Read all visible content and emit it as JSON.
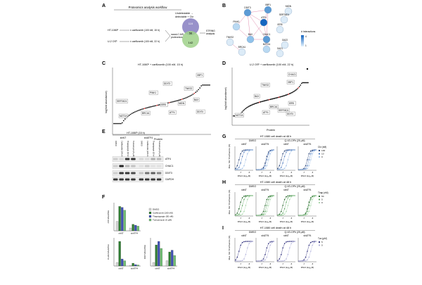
{
  "panels": {
    "A": {
      "letter": "A",
      "title": "Proteomics analysis workflow",
      "undetectable_label": "Undetectable →",
      "detectable_label": "detectable + Cfz",
      "cell1": "HT-1080ᵇ",
      "cell1_arrow": "± carfilzomib (100 nM, 15 h)",
      "cell2": "U-2 OSᵇ",
      "cell2_arrow": "± carfilzomib (100 nM, 22 h)",
      "method": "nanoLC-MS",
      "method2": "proteomics",
      "string_label": "STRING",
      "string_label2": "analysis",
      "venn": {
        "left": "119",
        "overlap": "56",
        "right": "142",
        "left_color": "#8d85c4",
        "right_color": "#9fd18a"
      }
    },
    "B": {
      "letter": "B",
      "legend_title": "# Interactions",
      "legend_max": "4",
      "legend_min": "1",
      "nodes": [
        "DDIT3",
        "XBP1",
        "MIDN",
        "SERTAD1",
        "PINK1",
        "ATF4",
        "IER5",
        "BAX",
        "CHAC1",
        "TNKS2",
        "MZT2A",
        "OAZ2",
        "BRCA1",
        "OAZ1"
      ]
    },
    "C": {
      "letter": "C",
      "title": "HT-1080ᵇ + carfilzomib (100 nM, 15 h)",
      "xlabel": "Protein",
      "ylabel": "log(fold abundance)",
      "labels": [
        "XBP1",
        "DDIT3",
        "TNKS2",
        "SERTAD1",
        "PINK1",
        "IER5",
        "BAX",
        "MIDN",
        "MZT2A",
        "BRCA1",
        "ATF4",
        "DDIT4"
      ]
    },
    "D": {
      "letter": "D",
      "title": "U-2 OSᵇ + carfilzomib (100 nM, 22 h)",
      "xlabel": "Protein",
      "ylabel": "log(fold abundance)",
      "labels": [
        "CHAC1",
        "XBP1",
        "TNKS2",
        "BAX",
        "IER5",
        "BRCA1",
        "SERTAD1",
        "MZT2A",
        "ATF4",
        "DDIT4"
      ]
    },
    "E": {
      "letter": "E",
      "title": "HT-1080ᵇ (15 h)",
      "groups": [
        "shNT",
        "shATF4"
      ],
      "lanes": [
        "DMSO",
        "Carfilzomib (100 nM)",
        "Thapsigargin (50 nM)",
        "Tunicamycin (5 μM)",
        "DMSO",
        "Carfilzomib (100 nM)",
        "Thapsigargin (50 nM)",
        "Tunicamycin (5 μM)"
      ],
      "bands": [
        "ATF4",
        "CHAC1",
        "DDIT3",
        "GAPDH"
      ]
    },
    "F": {
      "letter": "F",
      "legend": [
        "DMSO",
        "Carfilzomib (100 nM)",
        "Thapsigargin (50 nM)",
        "Tunicamycin (5 μM)"
      ],
      "legend_colors": [
        "#d9d9d9",
        "#2e7d32",
        "#3f51b5",
        "#6fbf73"
      ],
      "charts": [
        {
          "ylabel": "ATF4/GAPDH",
          "groups": [
            "shNT",
            "shATF4"
          ],
          "values": [
            [
              1.0,
              2.6,
              2.5,
              2.2
            ],
            [
              0.3,
              0.7,
              0.6,
              0.5
            ]
          ],
          "ymax": 3
        },
        {
          "ylabel": "CHAC1/GAPDH",
          "groups": [
            "shNT",
            "shATF4"
          ],
          "values": [
            [
              1.0,
              7.0,
              2.0,
              1.5
            ],
            [
              0.2,
              0.8,
              0.4,
              0.3
            ]
          ],
          "ymax": 8
        },
        {
          "ylabel": "DDIT3/GAPDH",
          "groups": [
            "shNT",
            "shATF4"
          ],
          "values": [
            [
              1.0,
              6.0,
              7.0,
              5.0
            ],
            [
              1.5,
              4.0,
              4.5,
              3.0
            ]
          ],
          "ymax": 8
        }
      ]
    },
    "G": {
      "letter": "G",
      "title": "HT-1080 cell death at 48 h",
      "conditions": [
        "DMSO",
        "Q-VD-OPh (25 μM)"
      ],
      "subplots": [
        "shNT",
        "shATF4",
        "shNT",
        "shATF4"
      ],
      "xlabel": "RSL3 (log₁₀M)",
      "ylabel": "Max. SG⁺/Confluence (%)",
      "legend_title": "Cfz (nM)",
      "legend": [
        "100",
        "10",
        "0"
      ]
    },
    "H": {
      "letter": "H",
      "title": "HT-1080 cell death at 48 h",
      "conditions": [
        "DMSO",
        "Q-VD-OPh (25 μM)"
      ],
      "subplots": [
        "shNT",
        "shATF4",
        "shNT",
        "shATF4"
      ],
      "xlabel": "RSL3 (log₁₀M)",
      "ylabel": "Max. SG⁺/Confluence (%)",
      "legend_title": "Thap (nM)",
      "legend": [
        "50",
        "5",
        "0"
      ]
    },
    "I": {
      "letter": "I",
      "title": "HT-1080 cell death at 48 h",
      "conditions": [
        "DMSO",
        "Q-VD-OPh (25 μM)"
      ],
      "subplots": [
        "shNT",
        "shATF4",
        "shNT",
        "shATF4"
      ],
      "xlabel": "RSL3 (log₁₀M)",
      "ylabel": "Max. SG⁺/Confluence (%)",
      "legend_title": "Tun (μM)",
      "legend": [
        "5",
        "0"
      ]
    }
  }
}
